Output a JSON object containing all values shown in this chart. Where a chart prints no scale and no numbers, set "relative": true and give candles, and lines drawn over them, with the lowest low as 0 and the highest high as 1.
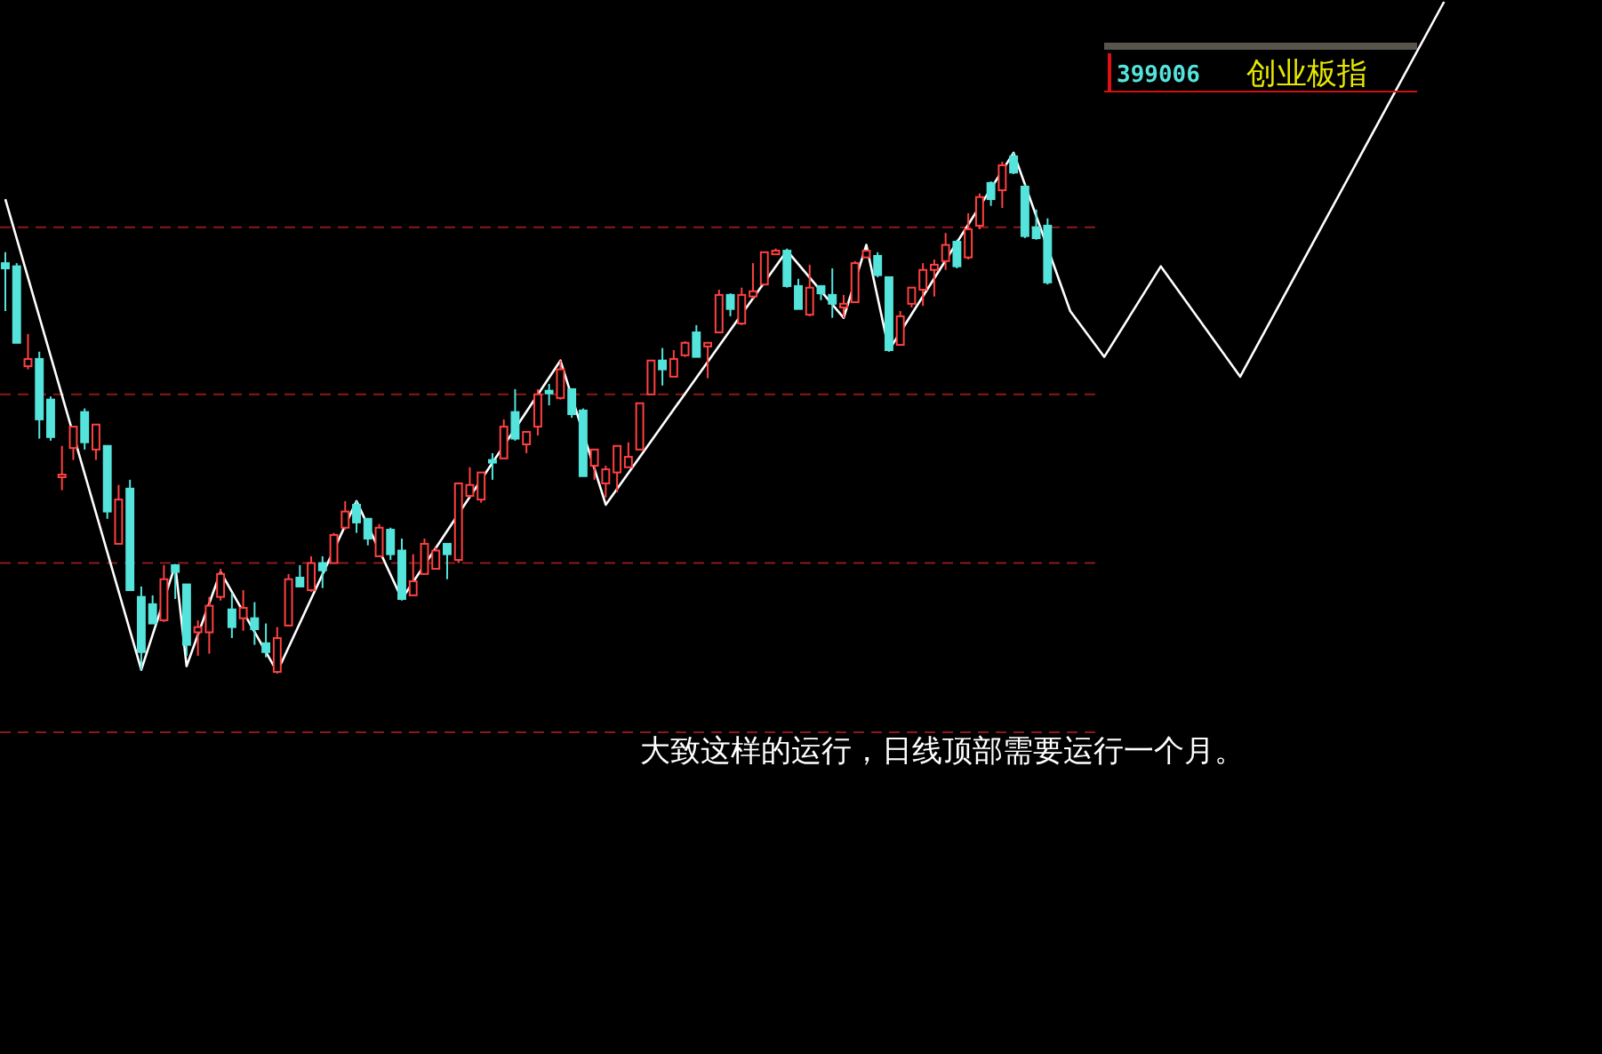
{
  "chart_data": {
    "type": "candlestick",
    "title": "399006",
    "subtitle": "创业板指",
    "relative": true,
    "grid": false,
    "categories": [
      null,
      null,
      null,
      null,
      null,
      null,
      null,
      null,
      null,
      null,
      null,
      null,
      null,
      null,
      null,
      null,
      null,
      null,
      null,
      null,
      null,
      null,
      null,
      null,
      null,
      null,
      null,
      null,
      null,
      null,
      null,
      null,
      null,
      null,
      null,
      null,
      null,
      null,
      null,
      null,
      null,
      null,
      null,
      null,
      null,
      null,
      null,
      null,
      null,
      null,
      null,
      null,
      null,
      null,
      null,
      null,
      null,
      null,
      null,
      null,
      null,
      null,
      null,
      null,
      null,
      null,
      null,
      null,
      null,
      null,
      null,
      null,
      null,
      null,
      null,
      null,
      null,
      null,
      null,
      null,
      null,
      null,
      null,
      null,
      null,
      null,
      null,
      null,
      null,
      null,
      null,
      null,
      null,
      null,
      null,
      null,
      null,
      null,
      null,
      null,
      null,
      null,
      null,
      null,
      null,
      null,
      null,
      null,
      null,
      null,
      null,
      null,
      null,
      null,
      null,
      null,
      null,
      null,
      null,
      null,
      null,
      null,
      null,
      null,
      null,
      null,
      null,
      null,
      null,
      null,
      null,
      null,
      null,
      null,
      null,
      null,
      null,
      null,
      null,
      null,
      null
    ],
    "ohlc": [
      [
        0.788,
        0.809,
        0.696,
        0.778
      ],
      [
        0.782,
        0.788,
        0.635,
        0.635
      ],
      [
        0.59,
        0.652,
        0.584,
        0.604
      ],
      [
        0.604,
        0.618,
        0.451,
        0.488
      ],
      [
        0.526,
        0.532,
        0.447,
        0.454
      ],
      [
        0.379,
        0.437,
        0.352,
        0.382
      ],
      [
        0.433,
        0.474,
        0.41,
        0.474
      ],
      [
        0.502,
        0.509,
        0.43,
        0.444
      ],
      [
        0.43,
        0.478,
        0.41,
        0.478
      ],
      [
        0.437,
        0.437,
        0.297,
        0.311
      ],
      [
        0.249,
        0.362,
        0.249,
        0.334
      ],
      [
        0.355,
        0.372,
        0.16,
        0.16
      ],
      [
        0.147,
        0.167,
        0.007,
        0.041
      ],
      [
        0.133,
        0.15,
        0.096,
        0.096
      ],
      [
        0.102,
        0.208,
        0.099,
        0.181
      ],
      [
        0.208,
        0.208,
        0.143,
        0.195
      ],
      [
        0.171,
        0.171,
        0.034,
        0.055
      ],
      [
        0.079,
        0.102,
        0.034,
        0.089
      ],
      [
        0.079,
        0.147,
        0.038,
        0.13
      ],
      [
        0.147,
        0.201,
        0.14,
        0.191
      ],
      [
        0.123,
        0.154,
        0.068,
        0.089
      ],
      [
        0.106,
        0.16,
        0.082,
        0.126
      ],
      [
        0.106,
        0.137,
        0.055,
        0.085
      ],
      [
        0.058,
        0.096,
        0.031,
        0.041
      ],
      [
        0.003,
        0.089,
        0,
        0.068
      ],
      [
        0.092,
        0.191,
        0.092,
        0.181
      ],
      [
        0.184,
        0.208,
        0.167,
        0.167
      ],
      [
        0.16,
        0.225,
        0.157,
        0.212
      ],
      [
        0.212,
        0.225,
        0.164,
        0.198
      ],
      [
        0.212,
        0.27,
        0.212,
        0.266
      ],
      [
        0.28,
        0.331,
        0.276,
        0.311
      ],
      [
        0.324,
        0.331,
        0.27,
        0.29
      ],
      [
        0.297,
        0.297,
        0.246,
        0.259
      ],
      [
        0.225,
        0.287,
        0.225,
        0.28
      ],
      [
        0.276,
        0.28,
        0.218,
        0.229
      ],
      [
        0.236,
        0.259,
        0.14,
        0.143
      ],
      [
        0.15,
        0.229,
        0.15,
        0.177
      ],
      [
        0.191,
        0.259,
        0.191,
        0.249
      ],
      [
        0.201,
        0.242,
        0.201,
        0.236
      ],
      [
        0.249,
        0.249,
        0.181,
        0.229
      ],
      [
        0.218,
        0.365,
        0.212,
        0.365
      ],
      [
        0.341,
        0.396,
        0.338,
        0.362
      ],
      [
        0.334,
        0.386,
        0.328,
        0.386
      ],
      [
        0.41,
        0.423,
        0.372,
        0.406
      ],
      [
        0.413,
        0.488,
        0.413,
        0.474
      ],
      [
        0.502,
        0.546,
        0.447,
        0.451
      ],
      [
        0.44,
        0.464,
        0.423,
        0.464
      ],
      [
        0.474,
        0.546,
        0.457,
        0.536
      ],
      [
        0.543,
        0.556,
        0.515,
        0.539
      ],
      [
        0.529,
        0.601,
        0.526,
        0.584
      ],
      [
        0.546,
        0.546,
        0.491,
        0.498
      ],
      [
        0.505,
        0.509,
        0.379,
        0.379
      ],
      [
        0.399,
        0.43,
        0.372,
        0.43
      ],
      [
        0.365,
        0.399,
        0.338,
        0.392
      ],
      [
        0.386,
        0.437,
        0.348,
        0.437
      ],
      [
        0.396,
        0.444,
        0.396,
        0.416
      ],
      [
        0.43,
        0.519,
        0.43,
        0.519
      ],
      [
        0.536,
        0.601,
        0.536,
        0.601
      ],
      [
        0.601,
        0.625,
        0.553,
        0.584
      ],
      [
        0.57,
        0.621,
        0.57,
        0.604
      ],
      [
        0.611,
        0.638,
        0.608,
        0.635
      ],
      [
        0.655,
        0.669,
        0.608,
        0.608
      ],
      [
        0.628,
        0.635,
        0.567,
        0.635
      ],
      [
        0.655,
        0.737,
        0.655,
        0.727
      ],
      [
        0.727,
        0.73,
        0.686,
        0.7
      ],
      [
        0.672,
        0.741,
        0.669,
        0.727
      ],
      [
        0.724,
        0.788,
        0.72,
        0.734
      ],
      [
        0.747,
        0.809,
        0.747,
        0.809
      ],
      [
        0.805,
        0.816,
        0.805,
        0.812
      ],
      [
        0.812,
        0.816,
        0.741,
        0.744
      ],
      [
        0.744,
        0.758,
        0.7,
        0.7
      ],
      [
        0.689,
        0.785,
        0.686,
        0.741
      ],
      [
        0.744,
        0.744,
        0.717,
        0.73
      ],
      [
        0.727,
        0.778,
        0.683,
        0.71
      ],
      [
        0.703,
        0.727,
        0.683,
        0.71
      ],
      [
        0.713,
        0.792,
        0.713,
        0.788
      ],
      [
        0.799,
        0.812,
        0.799,
        0.812
      ],
      [
        0.802,
        0.809,
        0.761,
        0.765
      ],
      [
        0.761,
        0.761,
        0.618,
        0.621
      ],
      [
        0.631,
        0.696,
        0.631,
        0.686
      ],
      [
        0.71,
        0.741,
        0.703,
        0.741
      ],
      [
        0.737,
        0.788,
        0.706,
        0.775
      ],
      [
        0.775,
        0.795,
        0.724,
        0.785
      ],
      [
        0.792,
        0.846,
        0.775,
        0.823
      ],
      [
        0.829,
        0.833,
        0.778,
        0.782
      ],
      [
        0.799,
        0.884,
        0.795,
        0.853
      ],
      [
        0.86,
        0.922,
        0.853,
        0.915
      ],
      [
        0.942,
        0.945,
        0.898,
        0.911
      ],
      [
        0.928,
        0.983,
        0.894,
        0.976
      ],
      [
        0.993,
        1,
        0.959,
        0.962
      ],
      [
        0.935,
        0.939,
        0.836,
        0.84
      ],
      [
        0.857,
        0.891,
        0.833,
        0.836
      ],
      [
        0.86,
        0.874,
        0.747,
        0.751
      ],
      null,
      null,
      null,
      null,
      null,
      null,
      null,
      null,
      null,
      null,
      null,
      null,
      null,
      null,
      null,
      null,
      null,
      null,
      null,
      null,
      null,
      null,
      null,
      null,
      null,
      null,
      null,
      null,
      null,
      null,
      null,
      null,
      null,
      null,
      null,
      null,
      null,
      null,
      null,
      null,
      null,
      null,
      null,
      null,
      null,
      null,
      null,
      null
    ],
    "series": [
      {
        "type": "line",
        "color": "#ffffff",
        "values": [
          0.911,
          null,
          null,
          null,
          null,
          null,
          null,
          null,
          null,
          null,
          null,
          null,
          0.007,
          null,
          null,
          0.208,
          0.014,
          null,
          null,
          0.195,
          null,
          null,
          null,
          null,
          0.003,
          null,
          null,
          null,
          null,
          null,
          null,
          0.331,
          null,
          null,
          null,
          0.143,
          null,
          null,
          null,
          null,
          null,
          null,
          null,
          null,
          null,
          null,
          null,
          null,
          null,
          0.601,
          null,
          null,
          null,
          0.324,
          null,
          null,
          null,
          null,
          null,
          null,
          null,
          null,
          null,
          null,
          null,
          null,
          null,
          null,
          null,
          0.812,
          null,
          null,
          null,
          null,
          0.683,
          null,
          0.823,
          null,
          0.621,
          null,
          null,
          null,
          null,
          null,
          null,
          null,
          null,
          null,
          null,
          1.0,
          null,
          null,
          null,
          null,
          0.696,
          null,
          null,
          0.608,
          null,
          null,
          null,
          null,
          0.782,
          null,
          null,
          null,
          null,
          null,
          null,
          0.57,
          null,
          null,
          null,
          null,
          null,
          null,
          null,
          null,
          null,
          null,
          null,
          null,
          null,
          null,
          null,
          null,
          null,
          1.29,
          null,
          null,
          null,
          null,
          null,
          null,
          null,
          null,
          null,
          null,
          null,
          null,
          null
        ]
      }
    ],
    "ref_lines": [
      {
        "axis": "y",
        "value": 0.857,
        "color": "#8b1a1a",
        "line_style": "dashed"
      },
      {
        "axis": "y",
        "value": 0.536,
        "color": "#8b1a1a",
        "line_style": "dashed"
      },
      {
        "axis": "y",
        "value": 0.212,
        "color": "#8b1a1a",
        "line_style": "dashed"
      },
      {
        "axis": "y",
        "value": -0.113,
        "color": "#8b1a1a",
        "line_style": "dashed"
      }
    ],
    "annotations": [
      "大致这样的运行，日线顶部需要运行一个月。"
    ]
  }
}
